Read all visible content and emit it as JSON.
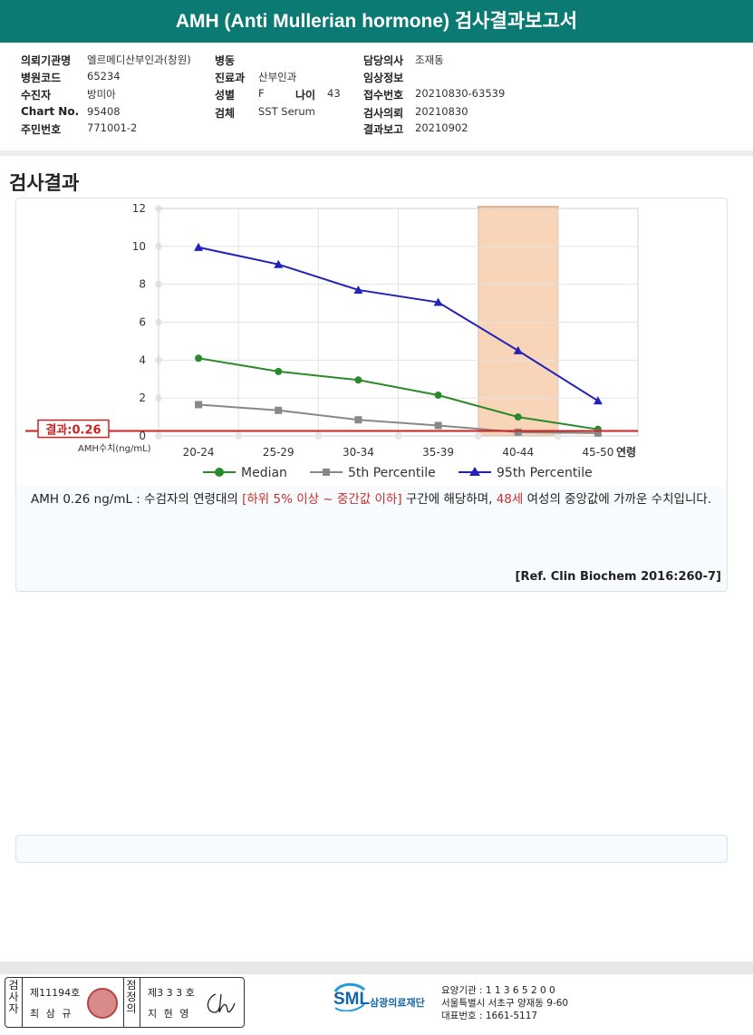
{
  "report": {
    "title": "AMH (Anti Mullerian hormone) 검사결과보고서",
    "section_title": "검사결과"
  },
  "info": {
    "institution_label": "의뢰기관명",
    "institution_value": "엘르메디산부인과(창원)",
    "hospital_code_label": "병원코드",
    "hospital_code_value": "65234",
    "examinee_label": "수진자",
    "examinee_value": "방미아",
    "chart_no_label": "Chart No.",
    "chart_no_value": "95408",
    "resident_no_label": "주민번호",
    "resident_no_value": "771001-2",
    "ward_label": "병동",
    "ward_value": "",
    "department_label": "진료과",
    "department_value": "산부인과",
    "sex_label": "성별",
    "sex_value": "F",
    "age_label": "나이",
    "age_value": "43",
    "specimen_label": "검체",
    "specimen_value": "SST Serum",
    "doctor_label": "담당의사",
    "doctor_value": "조재동",
    "clinical_label": "임상정보",
    "clinical_value": "",
    "reception_label": "접수번호",
    "reception_value": "20210830-63539",
    "request_label": "검사의뢰",
    "request_value": "20210830",
    "report_label": "결과보고",
    "report_value": "20210902"
  },
  "chart_data": {
    "type": "line",
    "categories": [
      "20-24",
      "25-29",
      "30-34",
      "35-39",
      "40-44",
      "45-50"
    ],
    "xlabel_left": "AMH수치(ng/mL)",
    "xlabel_right": "연령",
    "ylim": [
      0,
      12
    ],
    "yticks": [
      0,
      2,
      4,
      6,
      8,
      10,
      12
    ],
    "grid": true,
    "highlight_category": "40-44",
    "result_line": {
      "value": 0.26,
      "label": "결과:0.26",
      "color": "#cc2222"
    },
    "series": [
      {
        "name": "Median",
        "values": [
          4.1,
          3.4,
          2.95,
          2.15,
          1.0,
          0.35
        ],
        "color": "#2a8a2a",
        "marker": "circle"
      },
      {
        "name": "5th Percentile",
        "values": [
          1.65,
          1.35,
          0.85,
          0.55,
          0.2,
          0.15
        ],
        "color": "#888888",
        "marker": "square"
      },
      {
        "name": "95th Percentile",
        "values": [
          9.95,
          9.05,
          7.7,
          7.05,
          4.5,
          1.85
        ],
        "color": "#2222bb",
        "marker": "triangle"
      }
    ],
    "legend_position": "bottom"
  },
  "interpretation": {
    "part1": "AMH  0.26 ng/mL : 수검자의 연령대의 ",
    "highlight1": "[하위 5% 이상 ~ 중간값 이하]",
    "part2": " 구간에 해당하며, ",
    "highlight2": "48세",
    "part3": " 여성의 중앙값에 가까운 수치입니다."
  },
  "reference": "[Ref. Clin Biochem 2016:260-7]",
  "footer": {
    "inspector_label": "검사자",
    "inspector_license": "제11194호",
    "inspector_name": "최 삼 규",
    "confirmer_label": "점정의",
    "confirmer_license": "제3 3 3 호",
    "confirmer_name": "지 현 영",
    "logo": "SML",
    "org_name": "삼광의료재단",
    "care_code": "요양기관 : 1 1 3 6 5 2 0 0",
    "address": "서울특별시 서초구 양재동 9-60",
    "phone": "대표번호 : 1661-5117"
  },
  "colors": {
    "header": "#0b7a72",
    "highlight_band": "#f8d5b8",
    "accent_red": "#c9302c"
  }
}
